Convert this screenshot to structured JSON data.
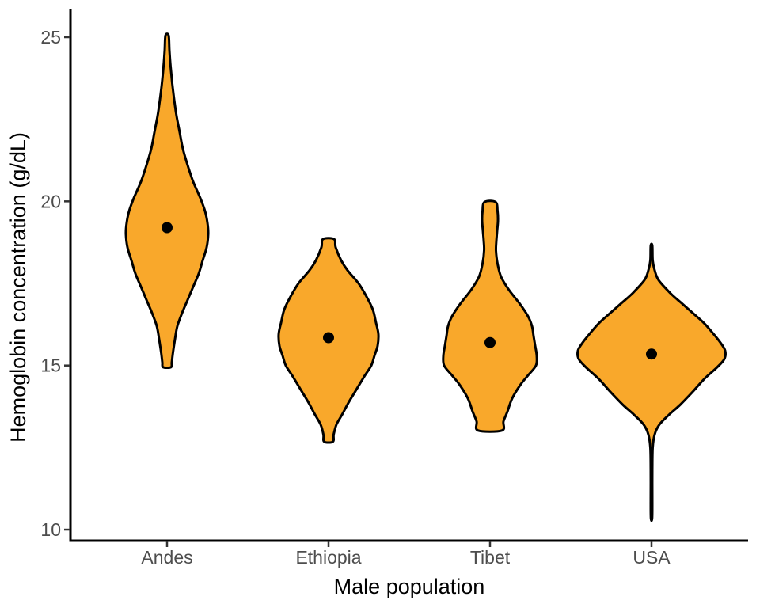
{
  "figure": {
    "background": "#ffffff"
  },
  "chart_data": {
    "type": "violin",
    "title": "",
    "xlabel": "Male population",
    "ylabel": "Hemoglobin concentration (g/dL)",
    "ylim": [
      9.6,
      25.9
    ],
    "y_ticks": [
      10,
      15,
      20,
      25
    ],
    "categories": [
      "Andes",
      "Ethiopia",
      "Tibet",
      "USA"
    ],
    "grid": false,
    "legend": false,
    "style": {
      "fill_color": "#F9A82B",
      "outline_color": "#000000",
      "mean_point_color": "#000000",
      "axis_line_color": "#000000",
      "tick_color": "#333333",
      "tick_label_color": "#4D4D4D",
      "axis_title_color": "#000000"
    },
    "violins": [
      {
        "category": "Andes",
        "mean": 19.2,
        "min": 14.95,
        "max": 25.05,
        "profile": [
          [
            25.05,
            2
          ],
          [
            24.6,
            3
          ],
          [
            24.1,
            4.5
          ],
          [
            23.6,
            6.5
          ],
          [
            23.1,
            9
          ],
          [
            22.6,
            12
          ],
          [
            22.1,
            16
          ],
          [
            21.6,
            20
          ],
          [
            21.1,
            26
          ],
          [
            20.6,
            33
          ],
          [
            20.1,
            42
          ],
          [
            19.7,
            48
          ],
          [
            19.35,
            51
          ],
          [
            19.0,
            52
          ],
          [
            18.6,
            50
          ],
          [
            18.2,
            45
          ],
          [
            17.8,
            40
          ],
          [
            17.4,
            33
          ],
          [
            17.0,
            26
          ],
          [
            16.6,
            19
          ],
          [
            16.2,
            13
          ],
          [
            15.8,
            10
          ],
          [
            15.4,
            7.5
          ],
          [
            15.1,
            6
          ],
          [
            14.95,
            5
          ]
        ]
      },
      {
        "category": "Ethiopia",
        "mean": 15.85,
        "min": 12.68,
        "max": 18.85,
        "profile": [
          [
            18.85,
            7
          ],
          [
            18.6,
            9
          ],
          [
            18.2,
            16
          ],
          [
            17.9,
            24
          ],
          [
            17.5,
            38
          ],
          [
            17.1,
            48
          ],
          [
            16.7,
            56
          ],
          [
            16.3,
            60
          ],
          [
            15.95,
            63
          ],
          [
            15.6,
            62
          ],
          [
            15.3,
            58
          ],
          [
            15.0,
            54
          ],
          [
            14.7,
            46
          ],
          [
            14.3,
            36
          ],
          [
            13.9,
            26
          ],
          [
            13.5,
            17
          ],
          [
            13.2,
            10
          ],
          [
            12.9,
            6.5
          ],
          [
            12.68,
            5.5
          ]
        ]
      },
      {
        "category": "Tibet",
        "mean": 15.7,
        "min": 13.0,
        "max": 20.0,
        "profile": [
          [
            19.98,
            7
          ],
          [
            19.7,
            9.5
          ],
          [
            19.4,
            10
          ],
          [
            19.1,
            9
          ],
          [
            18.8,
            8
          ],
          [
            18.5,
            7.5
          ],
          [
            18.1,
            9.5
          ],
          [
            17.7,
            14
          ],
          [
            17.3,
            24
          ],
          [
            16.9,
            37
          ],
          [
            16.5,
            48
          ],
          [
            16.2,
            53
          ],
          [
            15.9,
            55
          ],
          [
            15.6,
            57
          ],
          [
            15.3,
            59
          ],
          [
            15.0,
            58
          ],
          [
            14.7,
            48
          ],
          [
            14.4,
            38
          ],
          [
            14.0,
            28
          ],
          [
            13.6,
            22
          ],
          [
            13.3,
            17
          ],
          [
            13.02,
            15
          ]
        ]
      },
      {
        "category": "USA",
        "mean": 15.35,
        "min": 10.35,
        "max": 18.65,
        "profile": [
          [
            18.65,
            1
          ],
          [
            18.2,
            1.5
          ],
          [
            17.9,
            4
          ],
          [
            17.6,
            9
          ],
          [
            17.2,
            24
          ],
          [
            16.9,
            38
          ],
          [
            16.6,
            52
          ],
          [
            16.3,
            66
          ],
          [
            16.0,
            77
          ],
          [
            15.7,
            87
          ],
          [
            15.45,
            93
          ],
          [
            15.2,
            92
          ],
          [
            14.95,
            83
          ],
          [
            14.6,
            67
          ],
          [
            14.2,
            52
          ],
          [
            13.8,
            36
          ],
          [
            13.5,
            22
          ],
          [
            13.2,
            10
          ],
          [
            12.9,
            4
          ],
          [
            12.5,
            1.5
          ],
          [
            11.8,
            1
          ],
          [
            11.0,
            1
          ],
          [
            10.35,
            0.8
          ]
        ]
      }
    ]
  }
}
